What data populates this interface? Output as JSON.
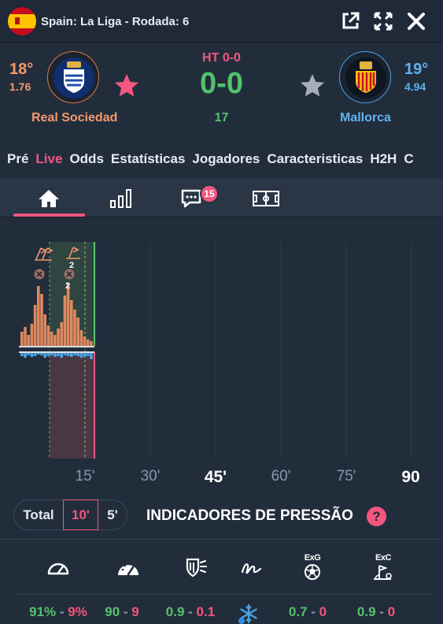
{
  "header": {
    "league": "Spain: La Liga - Rodada: 6",
    "icons": [
      "external-link-icon",
      "fullscreen-icon",
      "close-icon"
    ]
  },
  "match": {
    "home": {
      "name": "Real Sociedad",
      "temp": "18°",
      "odds": "1.76",
      "color": "#f29a6a"
    },
    "away": {
      "name": "Mallorca",
      "temp": "19°",
      "odds": "4.94",
      "color": "#5fb4ee"
    },
    "ht": "HT 0-0",
    "score": "0-0",
    "minute": "17"
  },
  "tabs": [
    "Pré",
    "Live",
    "Odds",
    "Estatísticas",
    "Jogadores",
    "Caracteristicas",
    "H2H",
    "C"
  ],
  "active_tab": "Live",
  "subnav": {
    "icons": [
      "home-icon",
      "stats-bars-icon",
      "comments-icon",
      "pitch-icon"
    ],
    "comment_count": "15"
  },
  "timeline": {
    "x_ticks": [
      "15'",
      "30'",
      "45'",
      "60'",
      "75'",
      "90"
    ],
    "events": {
      "corners_home": "2",
      "corners_away": "2"
    }
  },
  "controls": {
    "periods": [
      "Total",
      "10'",
      "5'"
    ],
    "selected": "10'",
    "title": "INDICADORES DE PRESSÃO",
    "help": "?"
  },
  "indicators": [
    {
      "icon": "speedometer-icon",
      "label": "",
      "home": "91%",
      "away": "9%"
    },
    {
      "icon": "gauge-icon",
      "label": "",
      "home": "90",
      "away": "9"
    },
    {
      "icon": "shield-shot-icon",
      "label": "",
      "home": "0.9",
      "away": "0.1"
    },
    {
      "icon": "signature-icon",
      "label": "",
      "home": "",
      "away": ""
    },
    {
      "icon": "ball-icon",
      "label": "ExG",
      "home": "0.7",
      "away": "0"
    },
    {
      "icon": "corner-flag-icon",
      "label": "ExC",
      "home": "0.9",
      "away": "0"
    }
  ],
  "colors": {
    "accent": "#f3567e",
    "home": "#f29a6a",
    "away": "#5fb4ee",
    "positive": "#53c26a"
  }
}
